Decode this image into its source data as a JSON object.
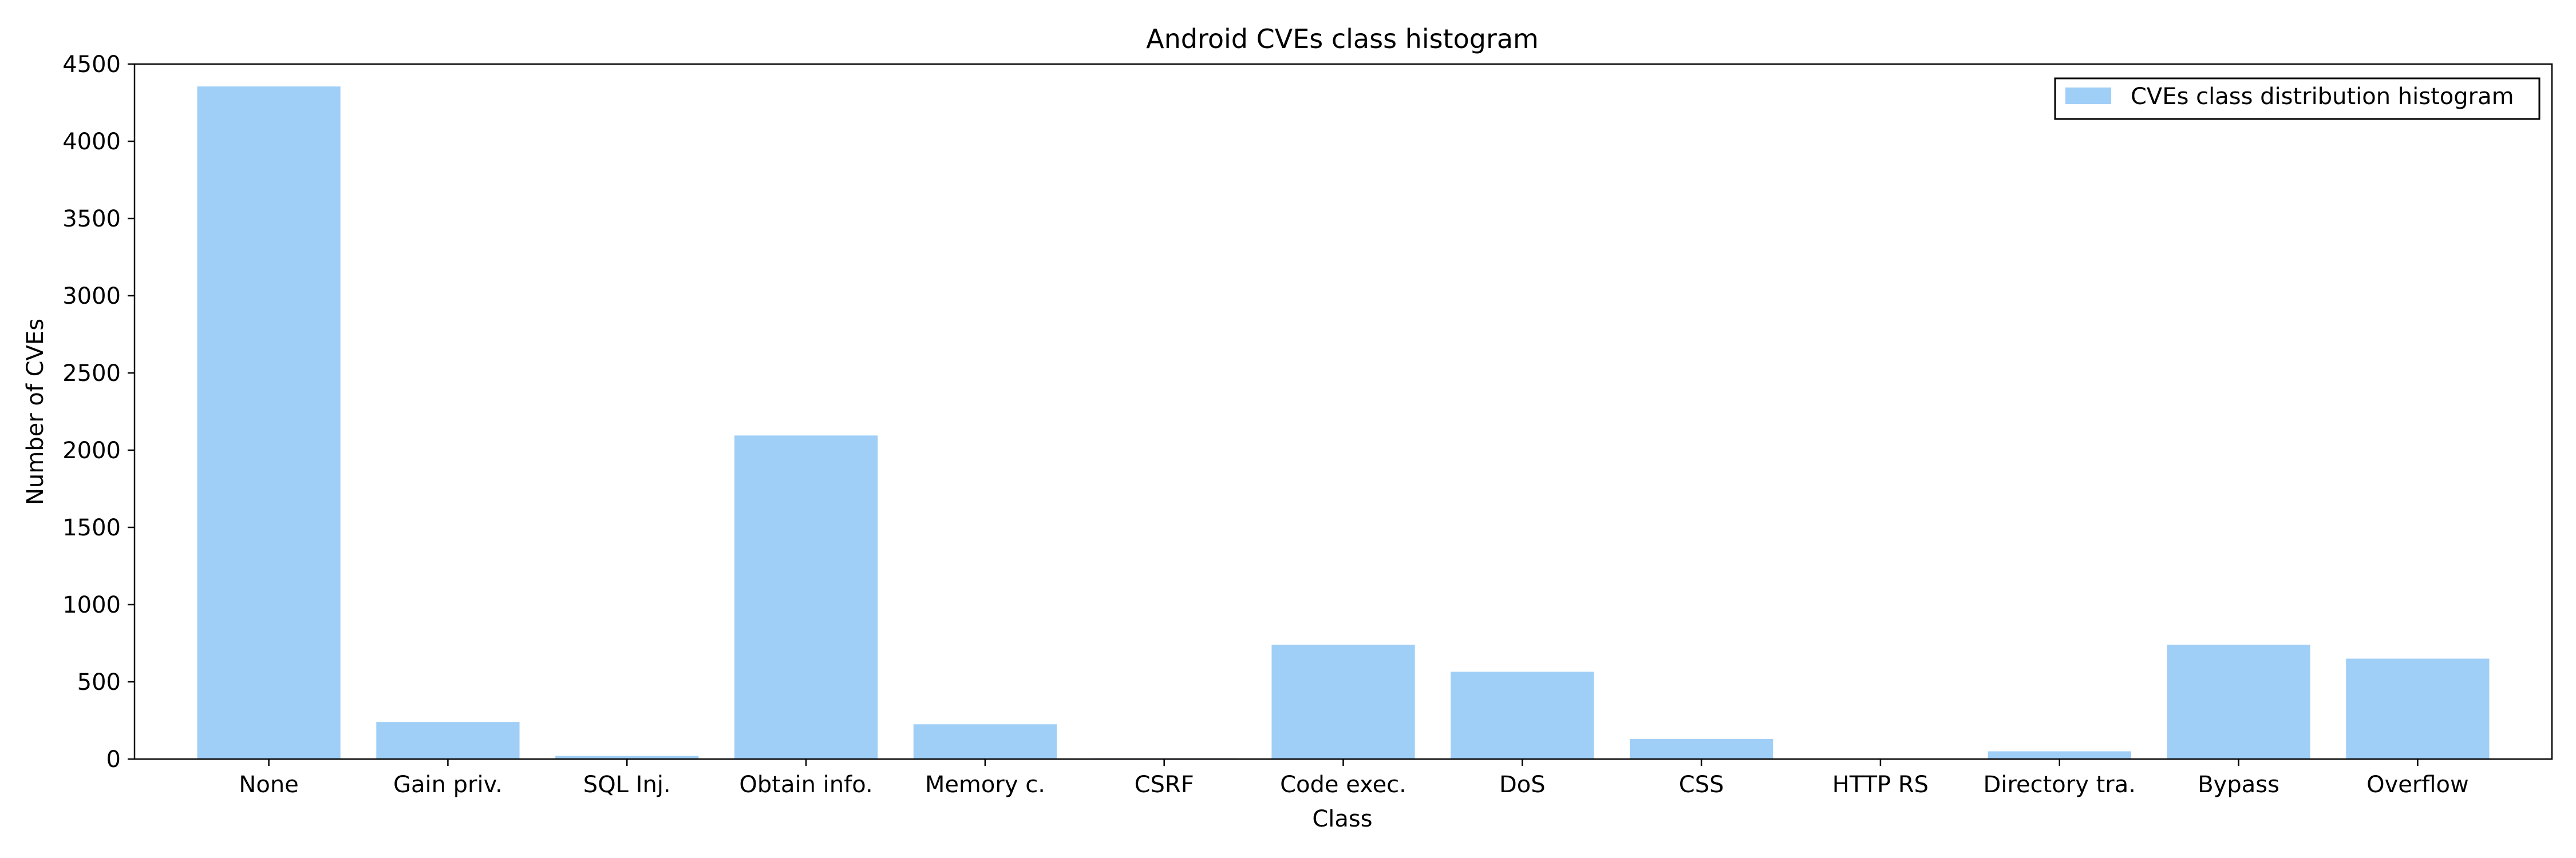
{
  "chart_data": {
    "type": "bar",
    "title": "Android CVEs class histogram",
    "xlabel": "Class",
    "ylabel": "Number of CVEs",
    "categories": [
      "None",
      "Gain priv.",
      "SQL Inj.",
      "Obtain info.",
      "Memory c.",
      "CSRF",
      "Code exec.",
      "DoS",
      "CSS",
      "HTTP RS",
      "Directory tra.",
      "Bypass",
      "Overflow"
    ],
    "series": [
      {
        "name": "CVEs class distribution histogram",
        "values": [
          4355,
          240,
          20,
          2095,
          225,
          5,
          740,
          565,
          130,
          3,
          50,
          740,
          650
        ],
        "color": "#9fcff7"
      }
    ],
    "ylim": [
      0,
      4500
    ],
    "yticks": [
      0,
      500,
      1000,
      1500,
      2000,
      2500,
      3000,
      3500,
      4000,
      4500
    ],
    "grid": false,
    "legend_position": "top-right"
  }
}
